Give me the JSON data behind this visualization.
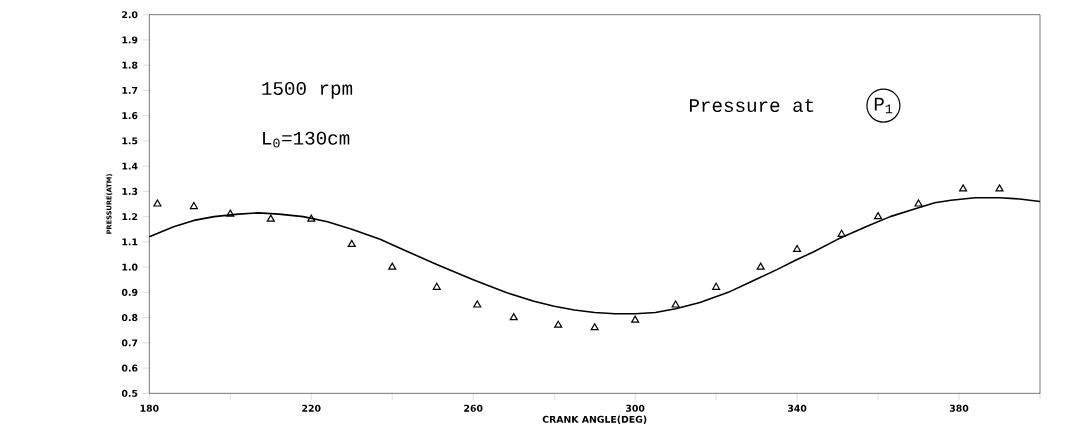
{
  "chart_data": {
    "type": "line",
    "xlabel": "CRANK ANGLE(DEG)",
    "ylabel": "PRESSURE(ATM)",
    "annotations": [
      "1500 rpm",
      "L$_{0}$=130cm",
      "Pressure at",
      "P$_{1}$"
    ],
    "xlim": [
      180,
      400
    ],
    "ylim": [
      0.5,
      2.0
    ],
    "xticks": [
      180,
      {
        "value": 200,
        "label": null
      },
      220,
      {
        "value": 240,
        "label": null
      },
      260,
      {
        "value": 280,
        "label": null
      },
      300,
      {
        "value": 320,
        "label": null
      },
      340,
      {
        "value": 360,
        "label": null
      },
      380,
      {
        "value": 400,
        "label": null
      }
    ],
    "yticks": [
      0.5,
      0.6,
      0.7,
      0.8,
      0.9,
      {
        "value": 1.0,
        "label": "1.0"
      },
      1.1,
      1.2,
      1.3,
      1.4,
      1.5,
      1.6,
      1.7,
      1.8,
      1.9,
      {
        "value": 2.0,
        "label": "2.0"
      }
    ],
    "grid": false,
    "legend": false,
    "series": [
      {
        "type": "scatter",
        "marker": "triangle",
        "color": "#000000",
        "x": [
          182,
          191,
          200,
          210,
          220,
          230,
          240,
          251,
          261,
          270,
          281,
          290,
          300,
          310,
          320,
          331,
          340,
          351,
          360,
          370,
          381,
          390
        ],
        "values": [
          1.25,
          1.24,
          1.21,
          1.19,
          1.19,
          1.09,
          1.0,
          0.92,
          0.85,
          0.8,
          0.77,
          0.76,
          0.79,
          0.85,
          0.92,
          1.0,
          1.07,
          1.13,
          1.2,
          1.25,
          1.31,
          1.31
        ]
      },
      {
        "marker": "none",
        "line_style": "solid",
        "color": "#000000",
        "x": [
          180,
          186,
          191,
          196,
          202,
          207,
          212,
          218,
          224,
          230,
          237,
          244,
          251,
          260,
          268,
          275,
          280,
          285,
          290,
          295,
          300,
          305,
          310,
          316,
          323,
          329,
          335,
          340,
          344,
          350,
          357,
          363,
          369,
          374,
          378,
          384,
          390,
          395,
          400
        ],
        "values": [
          1.12,
          1.16,
          1.185,
          1.2,
          1.21,
          1.215,
          1.21,
          1.2,
          1.18,
          1.15,
          1.11,
          1.06,
          1.01,
          0.95,
          0.9,
          0.865,
          0.845,
          0.83,
          0.82,
          0.815,
          0.815,
          0.82,
          0.835,
          0.86,
          0.9,
          0.945,
          0.99,
          1.03,
          1.06,
          1.11,
          1.16,
          1.2,
          1.23,
          1.255,
          1.265,
          1.275,
          1.275,
          1.27,
          1.26
        ]
      }
    ]
  }
}
